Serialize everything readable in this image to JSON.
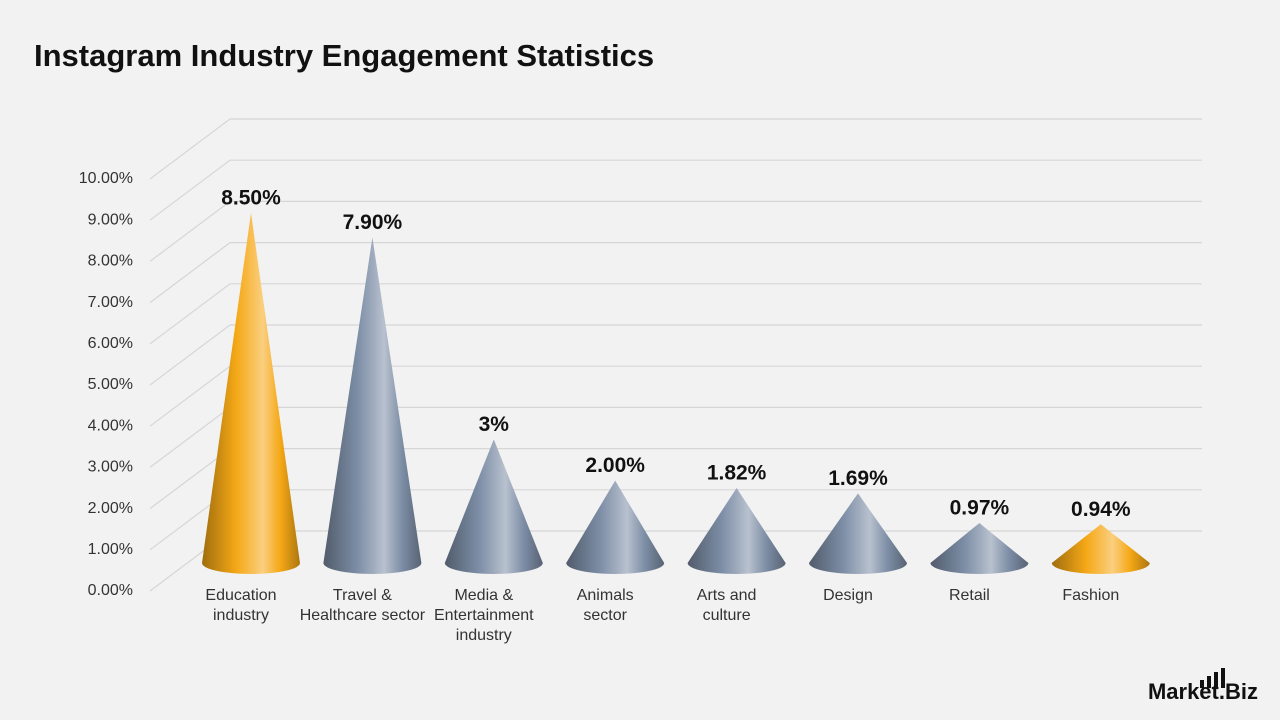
{
  "chart_data": {
    "type": "cone",
    "title": "Instagram Industry Engagement Statistics",
    "categories": [
      "Education industry",
      "Travel & Healthcare sector",
      "Media & Entertainment industry",
      "Animals sector",
      "Arts and culture",
      "Design",
      "Retail",
      "Fashion"
    ],
    "values": [
      8.5,
      7.9,
      3,
      2.0,
      1.82,
      1.69,
      0.97,
      0.94
    ],
    "value_labels": [
      "8.50%",
      "7.90%",
      "3%",
      "2.00%",
      "1.82%",
      "1.69%",
      "0.97%",
      "0.94%"
    ],
    "colors": [
      "#f5a816",
      "#7d8ea6",
      "#7d8ea6",
      "#7d8ea6",
      "#7d8ea6",
      "#7d8ea6",
      "#7d8ea6",
      "#f5a816"
    ],
    "ylim": [
      0,
      10
    ],
    "yticks": [
      {
        "value": 0,
        "label": "0.00%"
      },
      {
        "value": 1,
        "label": "1.00%"
      },
      {
        "value": 2,
        "label": "2.00%"
      },
      {
        "value": 3,
        "label": "3.00%"
      },
      {
        "value": 4,
        "label": "4.00%"
      },
      {
        "value": 5,
        "label": "5.00%"
      },
      {
        "value": 6,
        "label": "6.00%"
      },
      {
        "value": 7,
        "label": "7.00%"
      },
      {
        "value": 8,
        "label": "8.00%"
      },
      {
        "value": 9,
        "label": "9.00%"
      },
      {
        "value": 10,
        "label": "10.00%"
      }
    ],
    "grid": true
  },
  "brand": "Market.Biz"
}
